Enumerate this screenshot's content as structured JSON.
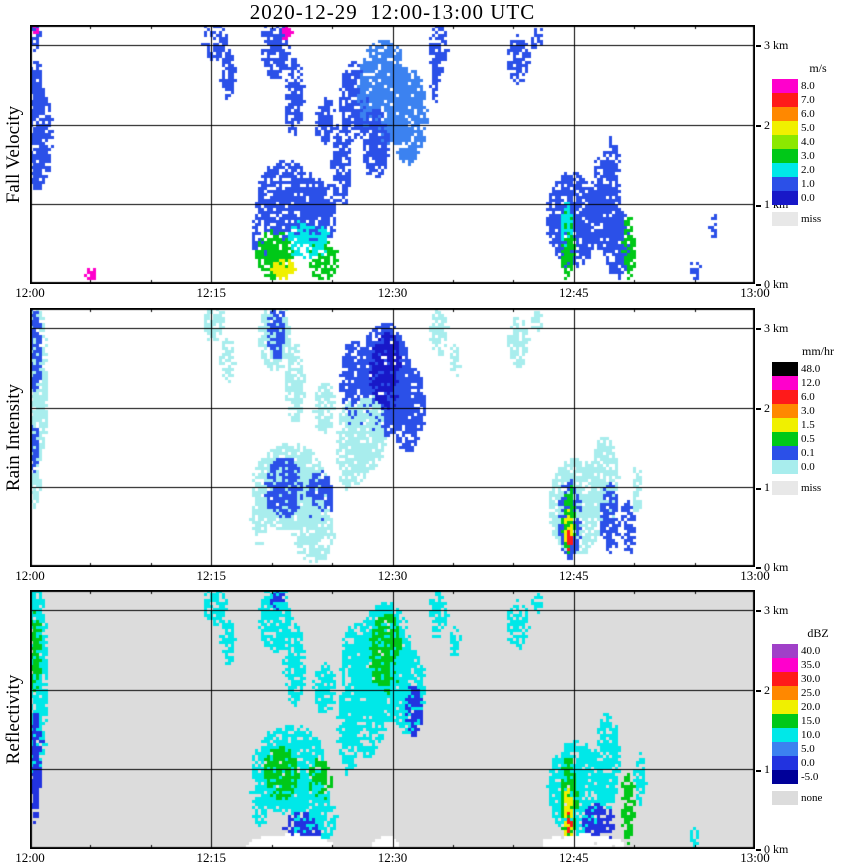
{
  "title": "2020-12-29  12:00-13:00 UTC",
  "palette": {
    "magenta": "#ff00cc",
    "purple": "#a040c8",
    "red": "#ff1a1a",
    "orange": "#ff8800",
    "yellow": "#f0f000",
    "yellowGreen": "#8ce800",
    "green": "#00c818",
    "cyan": "#00e8e8",
    "paleCyan": "#a8eded",
    "skyBlue": "#3c82f0",
    "blue": "#2b50e8",
    "mediumBlue": "#2233e0",
    "darkBlue": "#1818c8",
    "navy": "#000099",
    "black": "#000000",
    "white": "#ffffff",
    "missGray": "#e8e8e8",
    "noneGray": "#dcdcdc"
  },
  "chart_data": [
    {
      "type": "heatmap",
      "title": "Fall Velocity",
      "unit": "m/s",
      "background": "#ffffff",
      "x_range_minutes": [
        0,
        60
      ],
      "y_range_km": [
        0,
        3.25
      ],
      "x_gridlines_minutes": [
        15,
        30,
        45
      ],
      "y_gridlines_km": [
        1,
        2,
        3
      ],
      "x_ticks": [
        {
          "min": 0,
          "label": "12:00"
        },
        {
          "min": 15,
          "label": "12:15"
        },
        {
          "min": 30,
          "label": "12:30"
        },
        {
          "min": 45,
          "label": "12:45"
        },
        {
          "min": 60,
          "label": "13:00"
        }
      ],
      "y_ticks": [
        {
          "km": 3,
          "label": "3 km"
        },
        {
          "km": 2,
          "label": "2 km"
        },
        {
          "km": 1,
          "label": "1 km"
        },
        {
          "km": 0,
          "label": "0 km"
        }
      ],
      "legend": [
        {
          "label": "8.0",
          "color": "magenta"
        },
        {
          "label": "7.0",
          "color": "red"
        },
        {
          "label": "6.0",
          "color": "orange"
        },
        {
          "label": "5.0",
          "color": "yellow"
        },
        {
          "label": "4.0",
          "color": "yellowGreen"
        },
        {
          "label": "3.0",
          "color": "green"
        },
        {
          "label": "2.0",
          "color": "cyan"
        },
        {
          "label": "1.0",
          "color": "blue"
        },
        {
          "label": "0.0",
          "color": "darkBlue"
        },
        {
          "label": "miss",
          "color": "missGray",
          "gap": true
        }
      ],
      "echoes": [
        [
          0.6,
          1.85,
          1.1,
          0.6,
          "blue",
          1
        ],
        [
          0.4,
          2.45,
          0.6,
          0.35,
          "blue",
          0.9
        ],
        [
          0.3,
          3.1,
          0.5,
          0.15,
          "blue",
          0.8
        ],
        [
          0.3,
          3.22,
          0.4,
          0.07,
          "magenta",
          0.7
        ],
        [
          5,
          0.12,
          0.35,
          0.09,
          "magenta",
          0.8
        ],
        [
          15.3,
          3.05,
          0.9,
          0.22,
          "blue",
          0.7
        ],
        [
          16.4,
          2.62,
          0.5,
          0.28,
          "blue",
          0.8
        ],
        [
          20.3,
          2.95,
          1,
          0.35,
          "blue",
          0.8
        ],
        [
          21.3,
          3.18,
          0.4,
          0.1,
          "magenta",
          0.7
        ],
        [
          21.9,
          2.35,
          0.7,
          0.45,
          "blue",
          0.7
        ],
        [
          24.4,
          2.05,
          0.7,
          0.28,
          "blue",
          0.8
        ],
        [
          26.8,
          2.3,
          1,
          0.45,
          "blue",
          0.9
        ],
        [
          29.3,
          2.4,
          1.9,
          0.6,
          "skyBlue",
          1
        ],
        [
          31.3,
          2.1,
          1.4,
          0.55,
          "skyBlue",
          1
        ],
        [
          28.6,
          1.75,
          1,
          0.4,
          "blue",
          0.9
        ],
        [
          33.8,
          2.95,
          0.7,
          0.3,
          "blue",
          0.6
        ],
        [
          33.6,
          2.5,
          0.4,
          0.2,
          "blue",
          0.6
        ],
        [
          21.3,
          1.05,
          2.3,
          0.45,
          "blue",
          1
        ],
        [
          24,
          0.9,
          1.2,
          0.4,
          "blue",
          0.9
        ],
        [
          25.8,
          1.5,
          0.7,
          0.5,
          "blue",
          0.7
        ],
        [
          19,
          0.6,
          0.6,
          0.3,
          "blue",
          0.7
        ],
        [
          20.3,
          0.38,
          1.4,
          0.28,
          "green",
          0.9
        ],
        [
          21,
          0.18,
          0.9,
          0.12,
          "yellow",
          0.8
        ],
        [
          24.3,
          0.3,
          1.1,
          0.22,
          "green",
          0.8
        ],
        [
          23,
          0.55,
          1.6,
          0.22,
          "cyan",
          0.6
        ],
        [
          40.4,
          2.82,
          0.8,
          0.28,
          "blue",
          0.7
        ],
        [
          42,
          3.08,
          0.45,
          0.12,
          "blue",
          0.6
        ],
        [
          44.9,
          0.8,
          1.9,
          0.55,
          "blue",
          1
        ],
        [
          47.6,
          1,
          1.1,
          0.6,
          "blue",
          0.9
        ],
        [
          48.2,
          1.45,
          0.5,
          0.35,
          "blue",
          0.6
        ],
        [
          48.6,
          0.5,
          0.9,
          0.4,
          "blue",
          0.9
        ],
        [
          44.5,
          0.5,
          0.5,
          0.4,
          "green",
          0.9
        ],
        [
          44.4,
          0.75,
          0.4,
          0.25,
          "cyan",
          0.7
        ],
        [
          49.6,
          0.45,
          0.45,
          0.35,
          "green",
          0.8
        ],
        [
          56.5,
          0.72,
          0.3,
          0.15,
          "blue",
          0.6
        ],
        [
          55,
          0.18,
          0.4,
          0.12,
          "blue",
          0.6
        ]
      ]
    },
    {
      "type": "heatmap",
      "title": "Rain Intensity",
      "unit": "mm/hr",
      "background": "#ffffff",
      "x_range_minutes": [
        0,
        60
      ],
      "y_range_km": [
        0,
        3.25
      ],
      "x_gridlines_minutes": [
        15,
        30,
        45
      ],
      "y_gridlines_km": [
        1,
        2,
        3
      ],
      "x_ticks": [
        {
          "min": 0,
          "label": "12:00"
        },
        {
          "min": 15,
          "label": "12:15"
        },
        {
          "min": 30,
          "label": "12:30"
        },
        {
          "min": 45,
          "label": "12:45"
        },
        {
          "min": 60,
          "label": "13:00"
        }
      ],
      "y_ticks": [
        {
          "km": 3,
          "label": "3 km"
        },
        {
          "km": 2,
          "label": "2 km"
        },
        {
          "km": 1,
          "label": "1 km"
        },
        {
          "km": 0,
          "label": "0 km"
        }
      ],
      "legend": [
        {
          "label": "48.0",
          "color": "black"
        },
        {
          "label": "12.0",
          "color": "magenta"
        },
        {
          "label": "6.0",
          "color": "red"
        },
        {
          "label": "3.0",
          "color": "orange"
        },
        {
          "label": "1.5",
          "color": "yellow"
        },
        {
          "label": "0.5",
          "color": "green"
        },
        {
          "label": "0.1",
          "color": "blue"
        },
        {
          "label": "0.0",
          "color": "paleCyan"
        },
        {
          "label": "miss",
          "color": "missGray",
          "gap": true
        }
      ],
      "echoes": [
        [
          0.5,
          2.3,
          0.9,
          0.95,
          "paleCyan",
          1
        ],
        [
          0.4,
          2.7,
          0.5,
          0.45,
          "blue",
          0.9
        ],
        [
          0.3,
          1.45,
          0.4,
          0.3,
          "blue",
          0.8
        ],
        [
          0.3,
          3.1,
          0.4,
          0.12,
          "blue",
          0.7
        ],
        [
          0.4,
          1,
          0.4,
          0.25,
          "paleCyan",
          0.8
        ],
        [
          15.3,
          3.05,
          0.8,
          0.2,
          "paleCyan",
          0.7
        ],
        [
          16.4,
          2.6,
          0.5,
          0.25,
          "paleCyan",
          0.7
        ],
        [
          20.3,
          2.9,
          1.2,
          0.4,
          "paleCyan",
          0.9
        ],
        [
          20.4,
          2.95,
          0.7,
          0.3,
          "blue",
          0.8
        ],
        [
          21.9,
          2.3,
          0.7,
          0.45,
          "paleCyan",
          0.8
        ],
        [
          24.4,
          2,
          0.8,
          0.3,
          "paleCyan",
          0.8
        ],
        [
          26.9,
          2.3,
          1.1,
          0.5,
          "blue",
          0.9
        ],
        [
          29.4,
          2.35,
          1.9,
          0.65,
          "blue",
          1
        ],
        [
          29.5,
          2.45,
          1.2,
          0.45,
          "darkBlue",
          0.9
        ],
        [
          31.3,
          2,
          1.3,
          0.5,
          "blue",
          0.9
        ],
        [
          28,
          1.65,
          1.3,
          0.45,
          "paleCyan",
          0.8
        ],
        [
          27,
          1.35,
          0.8,
          0.3,
          "paleCyan",
          0.7
        ],
        [
          33.8,
          2.95,
          0.7,
          0.28,
          "paleCyan",
          0.6
        ],
        [
          35.2,
          2.6,
          0.4,
          0.2,
          "paleCyan",
          0.6
        ],
        [
          21.5,
          1,
          2.8,
          0.5,
          "paleCyan",
          1
        ],
        [
          21,
          1,
          1.4,
          0.35,
          "blue",
          0.9
        ],
        [
          24,
          0.88,
          1,
          0.3,
          "blue",
          0.8
        ],
        [
          26.3,
          1.5,
          0.8,
          0.5,
          "paleCyan",
          0.7
        ],
        [
          23.5,
          0.45,
          1.6,
          0.35,
          "paleCyan",
          0.7
        ],
        [
          19,
          0.6,
          0.6,
          0.3,
          "paleCyan",
          0.7
        ],
        [
          40.4,
          2.82,
          0.8,
          0.28,
          "paleCyan",
          0.7
        ],
        [
          42,
          3.08,
          0.45,
          0.12,
          "paleCyan",
          0.6
        ],
        [
          45.2,
          0.75,
          2,
          0.55,
          "paleCyan",
          1
        ],
        [
          47.6,
          1.05,
          1,
          0.55,
          "paleCyan",
          0.8
        ],
        [
          44.7,
          0.6,
          0.8,
          0.45,
          "blue",
          0.9
        ],
        [
          48,
          0.6,
          0.7,
          0.4,
          "blue",
          0.8
        ],
        [
          44.6,
          0.55,
          0.45,
          0.35,
          "green",
          0.9
        ],
        [
          44.6,
          0.5,
          0.25,
          0.2,
          "yellow",
          0.9
        ],
        [
          44.6,
          0.33,
          0.15,
          0.12,
          "red",
          1
        ],
        [
          44.7,
          0.9,
          0.2,
          0.12,
          "green",
          0.8
        ],
        [
          49.5,
          0.5,
          0.5,
          0.3,
          "blue",
          0.7
        ],
        [
          50.3,
          0.95,
          0.35,
          0.3,
          "paleCyan",
          0.7
        ]
      ]
    },
    {
      "type": "heatmap",
      "title": "Reflectivity",
      "unit": "dBZ",
      "background": "#dcdcdc",
      "x_range_minutes": [
        0,
        60
      ],
      "y_range_km": [
        0,
        3.25
      ],
      "x_gridlines_minutes": [
        15,
        30,
        45
      ],
      "y_gridlines_km": [
        1,
        2,
        3
      ],
      "x_ticks": [
        {
          "min": 0,
          "label": "12:00"
        },
        {
          "min": 15,
          "label": "12:15"
        },
        {
          "min": 30,
          "label": "12:30"
        },
        {
          "min": 45,
          "label": "12:45"
        },
        {
          "min": 60,
          "label": "13:00"
        }
      ],
      "y_ticks": [
        {
          "km": 3,
          "label": "3 km"
        },
        {
          "km": 2,
          "label": "2 km"
        },
        {
          "km": 1,
          "label": "1 km"
        },
        {
          "km": 0,
          "label": "0 km"
        }
      ],
      "legend": [
        {
          "label": "40.0",
          "color": "purple"
        },
        {
          "label": "35.0",
          "color": "magenta"
        },
        {
          "label": "30.0",
          "color": "red"
        },
        {
          "label": "25.0",
          "color": "orange"
        },
        {
          "label": "20.0",
          "color": "yellow"
        },
        {
          "label": "15.0",
          "color": "green"
        },
        {
          "label": "10.0",
          "color": "cyan"
        },
        {
          "label": "5.0",
          "color": "skyBlue"
        },
        {
          "label": "0.0",
          "color": "mediumBlue"
        },
        {
          "label": "-5.0",
          "color": "navy"
        },
        {
          "label": "none",
          "color": "noneGray",
          "gap": true
        }
      ],
      "echoes": [
        [
          0.5,
          2.1,
          0.9,
          1.1,
          "cyan",
          1
        ],
        [
          0.4,
          2.5,
          0.5,
          0.5,
          "green",
          0.8
        ],
        [
          0.5,
          1.2,
          0.5,
          0.45,
          "mediumBlue",
          0.9
        ],
        [
          0.3,
          3.05,
          0.4,
          0.18,
          "cyan",
          0.8
        ],
        [
          0.4,
          0.6,
          0.35,
          0.25,
          "mediumBlue",
          0.7
        ],
        [
          15.3,
          3.05,
          0.9,
          0.22,
          "cyan",
          0.7
        ],
        [
          16.4,
          2.6,
          0.5,
          0.28,
          "cyan",
          0.7
        ],
        [
          20.3,
          2.92,
          1.2,
          0.4,
          "cyan",
          0.9
        ],
        [
          20.5,
          3.1,
          0.5,
          0.12,
          "mediumBlue",
          0.6
        ],
        [
          21.9,
          2.3,
          0.8,
          0.48,
          "cyan",
          0.8
        ],
        [
          24.4,
          2,
          0.8,
          0.3,
          "cyan",
          0.8
        ],
        [
          27,
          2.3,
          1.1,
          0.5,
          "cyan",
          0.9
        ],
        [
          29.4,
          2.35,
          2,
          0.68,
          "cyan",
          1
        ],
        [
          29.5,
          2.45,
          1.2,
          0.45,
          "green",
          0.9
        ],
        [
          31.3,
          2,
          1.3,
          0.5,
          "cyan",
          0.9
        ],
        [
          28,
          1.65,
          1.3,
          0.45,
          "cyan",
          0.8
        ],
        [
          31.8,
          1.75,
          0.6,
          0.3,
          "mediumBlue",
          0.7
        ],
        [
          33.8,
          2.95,
          0.7,
          0.28,
          "cyan",
          0.6
        ],
        [
          35.2,
          2.6,
          0.4,
          0.2,
          "cyan",
          0.6
        ],
        [
          21.5,
          1,
          2.8,
          0.5,
          "cyan",
          1
        ],
        [
          20.8,
          0.95,
          1.3,
          0.3,
          "green",
          0.9
        ],
        [
          24,
          0.85,
          0.9,
          0.25,
          "green",
          0.8
        ],
        [
          26.3,
          1.5,
          0.8,
          0.5,
          "cyan",
          0.8
        ],
        [
          23.5,
          0.42,
          1.7,
          0.35,
          "cyan",
          0.8
        ],
        [
          22.5,
          0.25,
          1.3,
          0.2,
          "mediumBlue",
          0.7
        ],
        [
          19,
          0.6,
          0.6,
          0.3,
          "cyan",
          0.7
        ],
        [
          40.4,
          2.82,
          0.8,
          0.28,
          "cyan",
          0.7
        ],
        [
          42,
          3.08,
          0.45,
          0.12,
          "cyan",
          0.6
        ],
        [
          45.2,
          0.75,
          2.1,
          0.55,
          "cyan",
          1
        ],
        [
          47.8,
          1.1,
          0.9,
          0.55,
          "cyan",
          0.9
        ],
        [
          44.6,
          0.6,
          0.6,
          0.5,
          "green",
          0.9
        ],
        [
          44.6,
          0.45,
          0.3,
          0.3,
          "yellow",
          0.9
        ],
        [
          44.6,
          0.33,
          0.15,
          0.12,
          "red",
          1
        ],
        [
          49.5,
          0.5,
          0.5,
          0.4,
          "green",
          0.8
        ],
        [
          47,
          0.3,
          1.2,
          0.25,
          "mediumBlue",
          0.7
        ],
        [
          50.5,
          0.9,
          0.4,
          0.3,
          "cyan",
          0.7
        ],
        [
          55,
          0.15,
          0.4,
          0.1,
          "cyan",
          0.6
        ],
        [
          21.5,
          0.05,
          3.2,
          0.11,
          "white",
          3
        ],
        [
          45.8,
          0.05,
          3,
          0.11,
          "white",
          3
        ],
        [
          29.5,
          0.05,
          0.9,
          0.09,
          "white",
          3
        ]
      ]
    }
  ]
}
